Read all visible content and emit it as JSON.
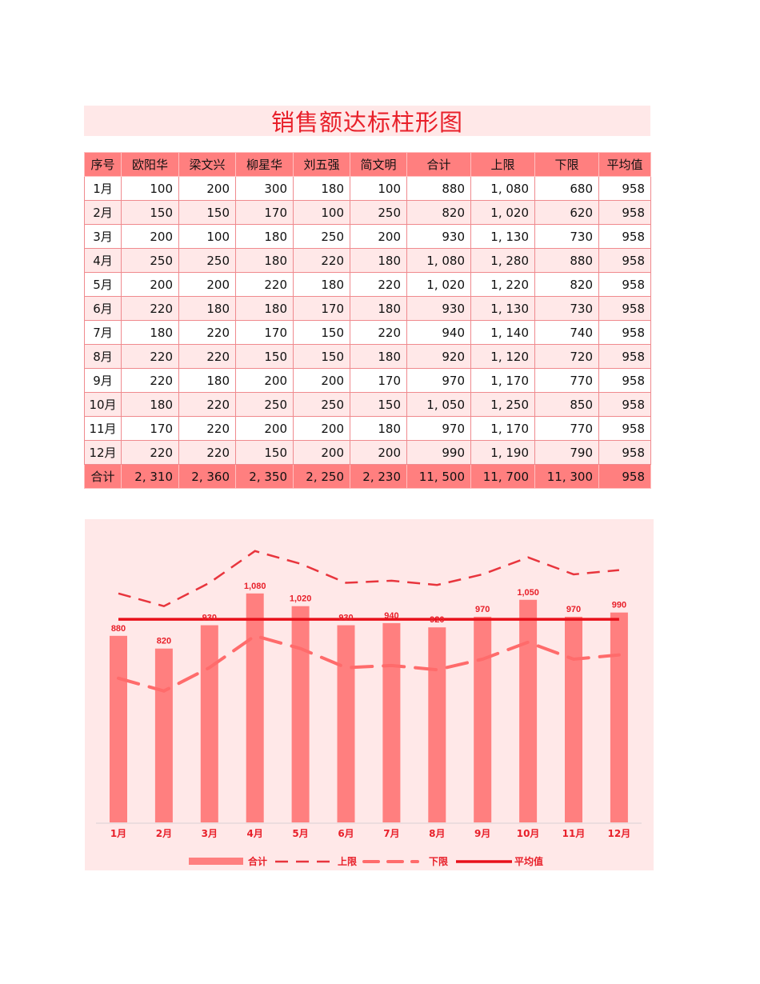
{
  "title": "销售额达标柱形图",
  "table": {
    "headers": [
      "序号",
      "欧阳华",
      "梁文兴",
      "柳星华",
      "刘五强",
      "简文明",
      "合计",
      "上限",
      "下限",
      "平均值"
    ],
    "rows": [
      [
        "1月",
        "100",
        "200",
        "300",
        "180",
        "100",
        "880",
        "1, 080",
        "680",
        "958"
      ],
      [
        "2月",
        "150",
        "150",
        "170",
        "100",
        "250",
        "820",
        "1, 020",
        "620",
        "958"
      ],
      [
        "3月",
        "200",
        "100",
        "180",
        "250",
        "200",
        "930",
        "1, 130",
        "730",
        "958"
      ],
      [
        "4月",
        "250",
        "250",
        "180",
        "220",
        "180",
        "1, 080",
        "1, 280",
        "880",
        "958"
      ],
      [
        "5月",
        "200",
        "200",
        "220",
        "180",
        "220",
        "1, 020",
        "1, 220",
        "820",
        "958"
      ],
      [
        "6月",
        "220",
        "180",
        "180",
        "170",
        "180",
        "930",
        "1, 130",
        "730",
        "958"
      ],
      [
        "7月",
        "180",
        "220",
        "170",
        "150",
        "220",
        "940",
        "1, 140",
        "740",
        "958"
      ],
      [
        "8月",
        "220",
        "220",
        "150",
        "150",
        "180",
        "920",
        "1, 120",
        "720",
        "958"
      ],
      [
        "9月",
        "220",
        "180",
        "200",
        "200",
        "170",
        "970",
        "1, 170",
        "770",
        "958"
      ],
      [
        "10月",
        "180",
        "220",
        "250",
        "250",
        "150",
        "1, 050",
        "1, 250",
        "850",
        "958"
      ],
      [
        "11月",
        "170",
        "220",
        "200",
        "200",
        "180",
        "970",
        "1, 170",
        "770",
        "958"
      ],
      [
        "12月",
        "220",
        "220",
        "150",
        "200",
        "200",
        "990",
        "1, 190",
        "790",
        "958"
      ]
    ],
    "footer": [
      "合计",
      "2, 310",
      "2, 360",
      "2, 350",
      "2, 250",
      "2, 230",
      "11, 500",
      "11, 700",
      "11, 300",
      "958"
    ]
  },
  "colors": {
    "bar": "#ff7f7f",
    "accent": "#e8202a",
    "upper_line": "#e8353d",
    "lower_line": "#ff6b6b",
    "avg_line": "#e8101a",
    "panel_bg": "#ffe8e8"
  },
  "chart_data": {
    "type": "bar",
    "title": "",
    "xlabel": "",
    "ylabel": "",
    "categories": [
      "1月",
      "2月",
      "3月",
      "4月",
      "5月",
      "6月",
      "7月",
      "8月",
      "9月",
      "10月",
      "11月",
      "12月"
    ],
    "series": [
      {
        "name": "合计",
        "type": "bar",
        "values": [
          880,
          820,
          930,
          1080,
          1020,
          930,
          940,
          920,
          970,
          1050,
          970,
          990
        ],
        "labels": [
          "880",
          "820",
          "930",
          "1,080",
          "1,020",
          "930",
          "940",
          "920",
          "970",
          "1,050",
          "970",
          "990"
        ]
      },
      {
        "name": "上限",
        "type": "line",
        "style": "dashed",
        "values": [
          1080,
          1020,
          1130,
          1280,
          1220,
          1130,
          1140,
          1120,
          1170,
          1250,
          1170,
          1190
        ]
      },
      {
        "name": "下限",
        "type": "line",
        "style": "long-dashed",
        "values": [
          680,
          620,
          730,
          880,
          820,
          730,
          740,
          720,
          770,
          850,
          770,
          790
        ]
      },
      {
        "name": "平均值",
        "type": "line",
        "style": "solid",
        "values": [
          958,
          958,
          958,
          958,
          958,
          958,
          958,
          958,
          958,
          958,
          958,
          958
        ]
      }
    ],
    "ylim": [
      0,
      1300
    ],
    "grid": false,
    "y_axis_visible": false,
    "legend_position": "bottom"
  }
}
